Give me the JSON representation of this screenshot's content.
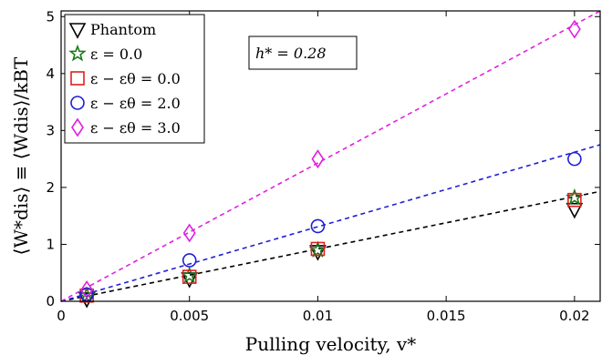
{
  "chart_data": {
    "type": "scatter",
    "xlabel": "Pulling velocity, v*",
    "ylabel": "⟨W*dis⟩ ≡ ⟨Wdis⟩/kBT",
    "xlim": [
      0,
      0.021
    ],
    "ylim": [
      0,
      5.1
    ],
    "x_ticks": [
      0,
      0.005,
      0.01,
      0.015,
      0.02
    ],
    "x_tick_labels": [
      "0",
      "0.005",
      "0.01",
      "0.015",
      "0.02"
    ],
    "y_ticks": [
      0,
      1,
      2,
      3,
      4,
      5
    ],
    "y_tick_labels": [
      "0",
      "1",
      "2",
      "3",
      "4",
      "5"
    ],
    "grid": false,
    "legend_position": "top-left",
    "annotation": "h* = 0.28",
    "series": [
      {
        "name": "Phantom",
        "marker": "triangle-down",
        "color": "#000000",
        "x": [
          0.001,
          0.005,
          0.01,
          0.02
        ],
        "y": [
          0.05,
          0.4,
          0.88,
          1.62
        ]
      },
      {
        "name": "ε = 0.0",
        "marker": "star",
        "color": "#1a7a1a",
        "x": [
          0.001,
          0.005,
          0.01,
          0.02
        ],
        "y": [
          0.1,
          0.45,
          0.9,
          1.82
        ]
      },
      {
        "name": "ε − εθ = 0.0",
        "marker": "square",
        "color": "#e02020",
        "x": [
          0.001,
          0.005,
          0.01,
          0.02
        ],
        "y": [
          0.1,
          0.43,
          0.92,
          1.78
        ]
      },
      {
        "name": "ε − εθ = 2.0",
        "marker": "circle",
        "color": "#1f1fd6",
        "x": [
          0.001,
          0.005,
          0.01,
          0.02
        ],
        "y": [
          0.12,
          0.72,
          1.32,
          2.5
        ]
      },
      {
        "name": "ε − εθ = 3.0",
        "marker": "diamond",
        "color": "#e020e0",
        "x": [
          0.001,
          0.005,
          0.01,
          0.02
        ],
        "y": [
          0.2,
          1.2,
          2.5,
          4.78
        ]
      }
    ],
    "fit_lines": [
      {
        "color": "#000000",
        "x": [
          0,
          0.021
        ],
        "y": [
          0,
          1.93
        ]
      },
      {
        "color": "#1f1fd6",
        "x": [
          0,
          0.021
        ],
        "y": [
          0,
          2.75
        ]
      },
      {
        "color": "#e020e0",
        "x": [
          0,
          0.021
        ],
        "y": [
          0,
          5.1
        ]
      }
    ]
  }
}
